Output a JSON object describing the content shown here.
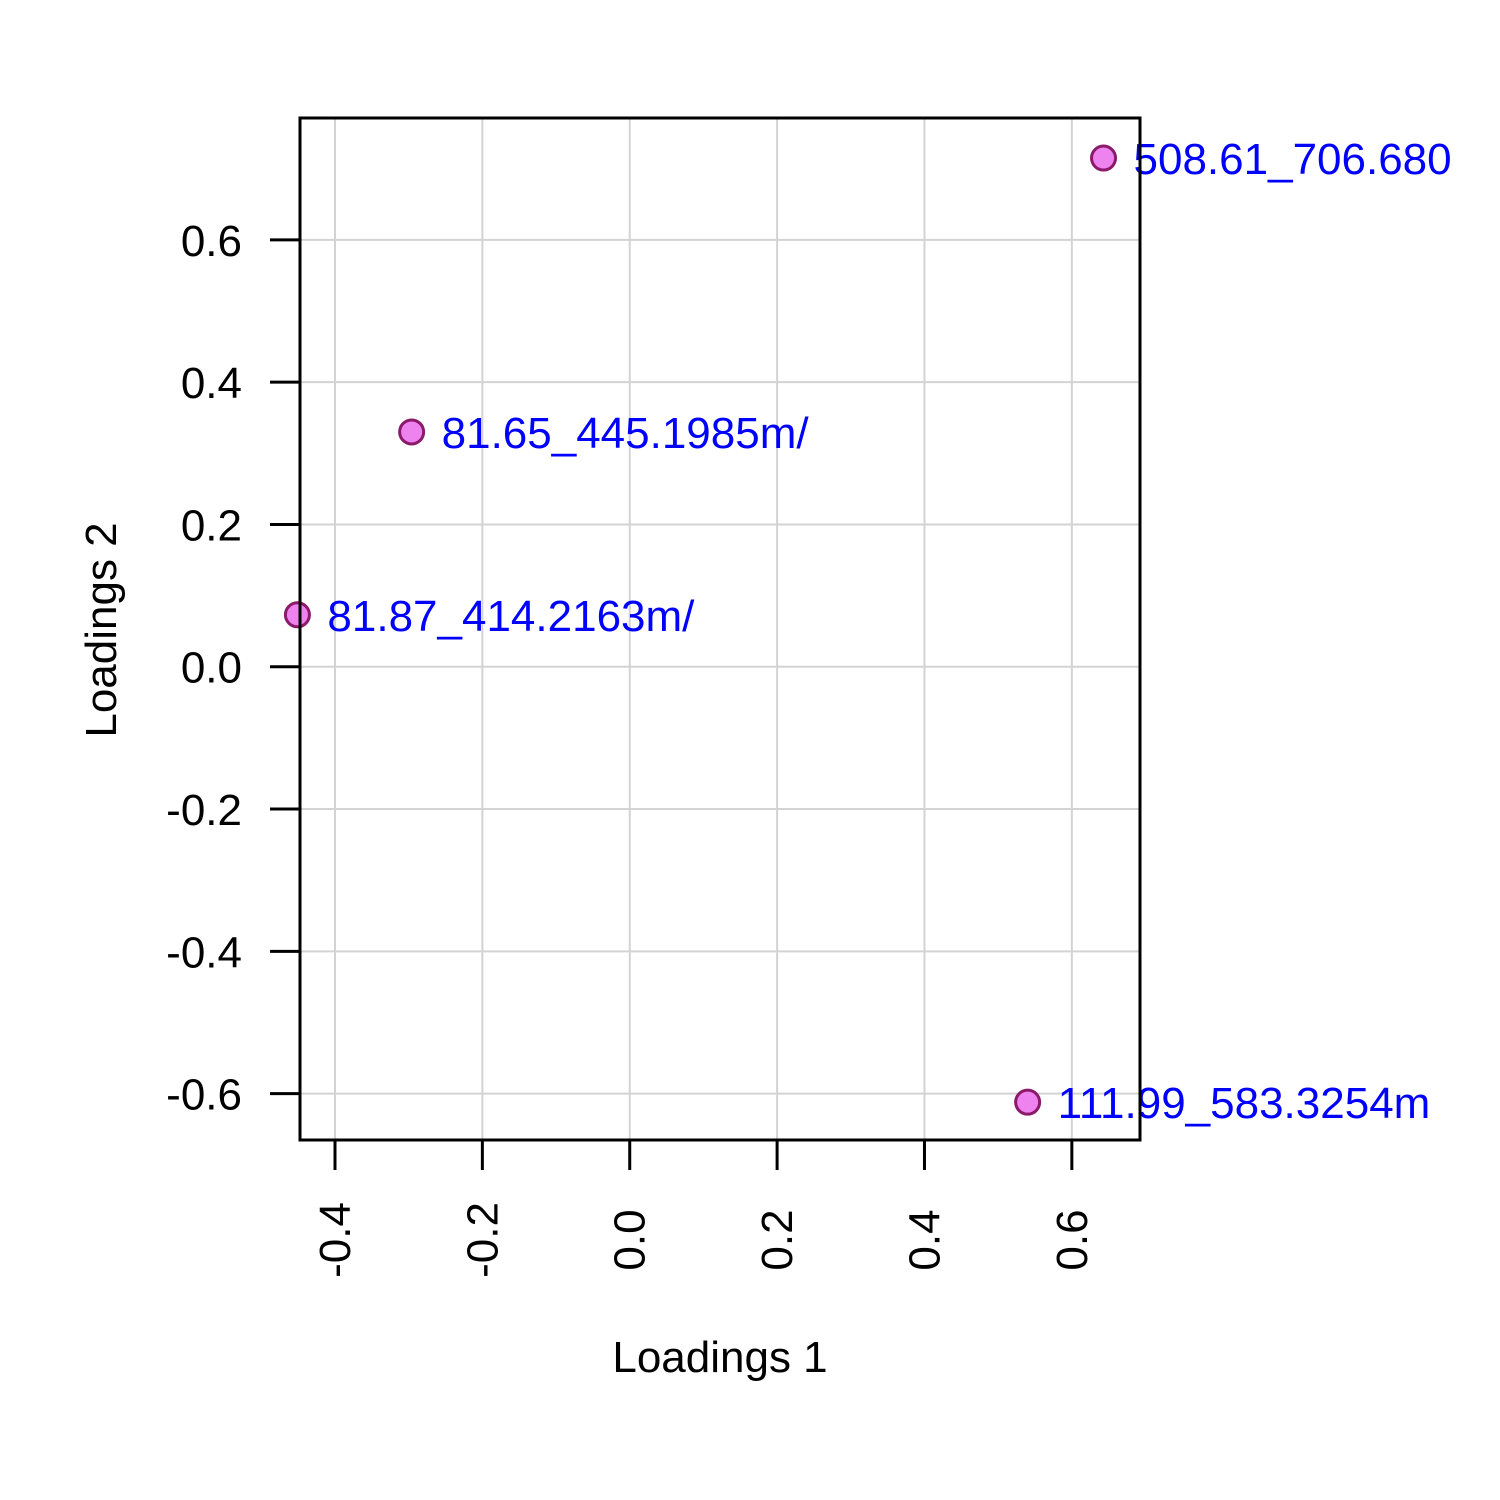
{
  "chart_data": {
    "type": "scatter",
    "title": "",
    "xlabel": "Loadings 1",
    "ylabel": "Loadings 2",
    "xlim": [
      -0.4475,
      0.6925
    ],
    "ylim": [
      -0.6652,
      0.7713
    ],
    "x_ticks": [
      -0.4,
      -0.2,
      0.0,
      0.2,
      0.4,
      0.6
    ],
    "x_tick_labels": [
      "-0.4",
      "-0.2",
      "0.0",
      "0.2",
      "0.4",
      "0.6"
    ],
    "y_ticks": [
      -0.6,
      -0.4,
      -0.2,
      0.0,
      0.2,
      0.4,
      0.6
    ],
    "y_tick_labels": [
      "-0.6",
      "-0.4",
      "-0.2",
      "0.0",
      "0.2",
      "0.4",
      "0.6"
    ],
    "grid": true,
    "colors": {
      "point_fill": "#ee82ee",
      "point_stroke": "#8b1a6b",
      "label": "#0000ff",
      "grid": "#d3d3d3",
      "axis": "#000000"
    },
    "points": [
      {
        "x": 0.643,
        "y": 0.715,
        "label": "508.61_706.680"
      },
      {
        "x": -0.296,
        "y": 0.33,
        "label": "81.65_445.1985m/"
      },
      {
        "x": -0.451,
        "y": 0.073,
        "label": "81.87_414.2163m/"
      },
      {
        "x": 0.54,
        "y": -0.612,
        "label": "111.99_583.3254m"
      }
    ]
  }
}
